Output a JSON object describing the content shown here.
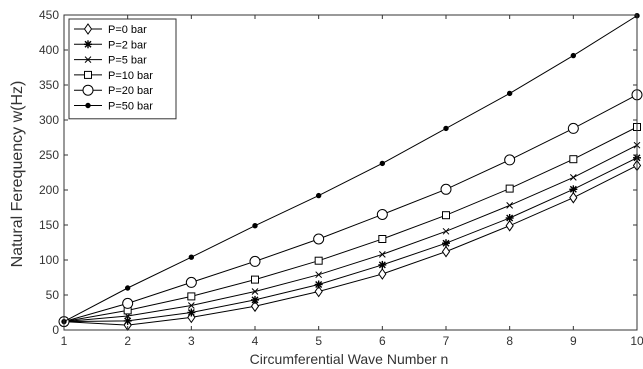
{
  "chart_data": {
    "type": "line",
    "title": "",
    "xlabel": "Circumferential Wave Number n",
    "ylabel": "Natural Ferequency w(Hz)",
    "xlim": [
      1,
      10
    ],
    "ylim": [
      0,
      450
    ],
    "xticks": [
      1,
      2,
      3,
      4,
      5,
      6,
      7,
      8,
      9,
      10
    ],
    "yticks": [
      0,
      50,
      100,
      150,
      200,
      250,
      300,
      350,
      400,
      450
    ],
    "grid": false,
    "legend_position": "top-left",
    "x": [
      1,
      2,
      3,
      4,
      5,
      6,
      7,
      8,
      9,
      10
    ],
    "series": [
      {
        "name": "P=0 bar",
        "marker": "diamond",
        "values": [
          12,
          7,
          18,
          34,
          55,
          80,
          112,
          149,
          189,
          235
        ]
      },
      {
        "name": "P=2 bar",
        "marker": "asterisk",
        "values": [
          12,
          13,
          25,
          43,
          65,
          93,
          124,
          160,
          201,
          246
        ]
      },
      {
        "name": "P=5 bar",
        "marker": "x",
        "values": [
          12,
          20,
          35,
          55,
          79,
          108,
          141,
          178,
          218,
          264
        ]
      },
      {
        "name": "P=10 bar",
        "marker": "square",
        "values": [
          12,
          28,
          48,
          72,
          99,
          130,
          164,
          202,
          244,
          290
        ]
      },
      {
        "name": "P=20 bar",
        "marker": "circle",
        "values": [
          12,
          38,
          68,
          98,
          130,
          165,
          201,
          243,
          288,
          336
        ]
      },
      {
        "name": "P=50 bar",
        "marker": "dot",
        "values": [
          12,
          60,
          104,
          149,
          192,
          238,
          288,
          338,
          392,
          449
        ]
      }
    ]
  },
  "colors": {
    "line": "#000000",
    "marker": "#000000",
    "axis": "#333333",
    "background": "#ffffff"
  }
}
